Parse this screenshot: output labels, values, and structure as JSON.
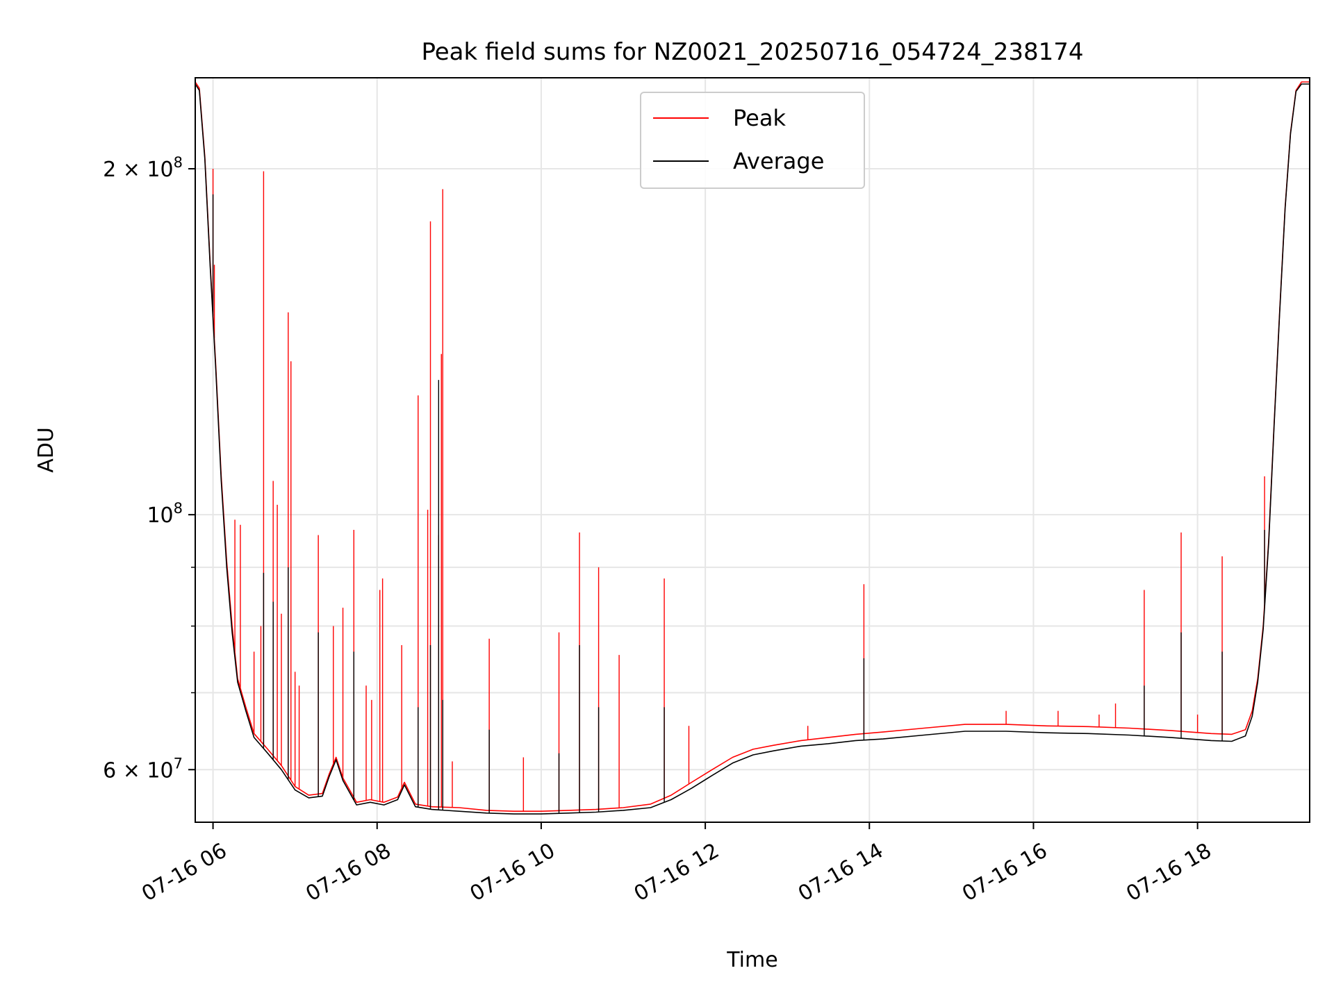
{
  "chart_data": {
    "type": "line",
    "title": "Peak field sums for NZ0021_20250716_054724_238174",
    "xlabel": "Time",
    "ylabel": "ADU",
    "x_scale": "time",
    "y_scale": "log",
    "xlim": [
      "2025-07-16 05:47",
      "2025-07-16 19:22"
    ],
    "ylim": [
      54000000,
      240000000
    ],
    "x_ticks": [
      {
        "value": "2025-07-16 06:00",
        "label": "07-16 06"
      },
      {
        "value": "2025-07-16 08:00",
        "label": "07-16 08"
      },
      {
        "value": "2025-07-16 10:00",
        "label": "07-16 10"
      },
      {
        "value": "2025-07-16 12:00",
        "label": "07-16 12"
      },
      {
        "value": "2025-07-16 14:00",
        "label": "07-16 14"
      },
      {
        "value": "2025-07-16 16:00",
        "label": "07-16 16"
      },
      {
        "value": "2025-07-16 18:00",
        "label": "07-16 18"
      }
    ],
    "y_ticks": [
      {
        "value": 60000000,
        "base": "6 × 10",
        "exp": "7"
      },
      {
        "value": 100000000,
        "base": "10",
        "exp": "8"
      },
      {
        "value": 200000000,
        "base": "2 × 10",
        "exp": "8"
      }
    ],
    "y_minor_ticks": [
      70000000,
      80000000,
      90000000
    ],
    "grid": true,
    "legend_position": "upper center",
    "series": [
      {
        "name": "Peak",
        "color": "#ff0000",
        "baseline": [
          [
            "2025-07-16 05:47",
            238000000
          ],
          [
            "2025-07-16 05:50",
            235000000
          ],
          [
            "2025-07-16 05:54",
            205000000
          ],
          [
            "2025-07-16 05:58",
            165000000
          ],
          [
            "2025-07-16 06:02",
            135000000
          ],
          [
            "2025-07-16 06:06",
            108000000
          ],
          [
            "2025-07-16 06:10",
            91000000
          ],
          [
            "2025-07-16 06:14",
            80000000
          ],
          [
            "2025-07-16 06:18",
            72000000
          ],
          [
            "2025-07-16 06:24",
            68000000
          ],
          [
            "2025-07-16 06:30",
            64500000
          ],
          [
            "2025-07-16 06:40",
            62500000
          ],
          [
            "2025-07-16 06:50",
            60500000
          ],
          [
            "2025-07-16 07:00",
            58000000
          ],
          [
            "2025-07-16 07:10",
            57000000
          ],
          [
            "2025-07-16 07:20",
            57200000
          ],
          [
            "2025-07-16 07:25",
            59500000
          ],
          [
            "2025-07-16 07:30",
            61500000
          ],
          [
            "2025-07-16 07:35",
            59000000
          ],
          [
            "2025-07-16 07:45",
            56200000
          ],
          [
            "2025-07-16 07:55",
            56500000
          ],
          [
            "2025-07-16 08:05",
            56200000
          ],
          [
            "2025-07-16 08:15",
            56800000
          ],
          [
            "2025-07-16 08:20",
            58500000
          ],
          [
            "2025-07-16 08:28",
            56000000
          ],
          [
            "2025-07-16 08:40",
            55700000
          ],
          [
            "2025-07-16 09:00",
            55600000
          ],
          [
            "2025-07-16 09:20",
            55300000
          ],
          [
            "2025-07-16 09:40",
            55200000
          ],
          [
            "2025-07-16 10:00",
            55200000
          ],
          [
            "2025-07-16 10:20",
            55300000
          ],
          [
            "2025-07-16 10:40",
            55400000
          ],
          [
            "2025-07-16 11:00",
            55600000
          ],
          [
            "2025-07-16 11:20",
            56000000
          ],
          [
            "2025-07-16 11:35",
            57000000
          ],
          [
            "2025-07-16 11:50",
            58500000
          ],
          [
            "2025-07-16 12:05",
            60000000
          ],
          [
            "2025-07-16 12:20",
            61500000
          ],
          [
            "2025-07-16 12:35",
            62500000
          ],
          [
            "2025-07-16 12:50",
            63000000
          ],
          [
            "2025-07-16 13:10",
            63600000
          ],
          [
            "2025-07-16 13:30",
            64000000
          ],
          [
            "2025-07-16 13:50",
            64400000
          ],
          [
            "2025-07-16 14:10",
            64700000
          ],
          [
            "2025-07-16 14:40",
            65200000
          ],
          [
            "2025-07-16 15:10",
            65700000
          ],
          [
            "2025-07-16 15:40",
            65700000
          ],
          [
            "2025-07-16 16:10",
            65500000
          ],
          [
            "2025-07-16 16:40",
            65400000
          ],
          [
            "2025-07-16 17:10",
            65200000
          ],
          [
            "2025-07-16 17:40",
            64900000
          ],
          [
            "2025-07-16 18:10",
            64500000
          ],
          [
            "2025-07-16 18:25",
            64400000
          ],
          [
            "2025-07-16 18:35",
            65000000
          ],
          [
            "2025-07-16 18:40",
            67500000
          ],
          [
            "2025-07-16 18:44",
            72000000
          ],
          [
            "2025-07-16 18:48",
            80000000
          ],
          [
            "2025-07-16 18:52",
            95000000
          ],
          [
            "2025-07-16 18:56",
            120000000
          ],
          [
            "2025-07-16 19:00",
            150000000
          ],
          [
            "2025-07-16 19:04",
            185000000
          ],
          [
            "2025-07-16 19:08",
            215000000
          ],
          [
            "2025-07-16 19:12",
            234000000
          ],
          [
            "2025-07-16 19:16",
            238000000
          ],
          [
            "2025-07-16 19:22",
            238000000
          ]
        ],
        "spikes": [
          [
            "2025-07-16 06:00",
            200000000
          ],
          [
            "2025-07-16 06:01",
            165000000
          ],
          [
            "2025-07-16 06:16",
            99000000
          ],
          [
            "2025-07-16 06:20",
            98000000
          ],
          [
            "2025-07-16 06:30",
            76000000
          ],
          [
            "2025-07-16 06:35",
            80000000
          ],
          [
            "2025-07-16 06:37",
            199000000
          ],
          [
            "2025-07-16 06:44",
            107000000
          ],
          [
            "2025-07-16 06:47",
            102000000
          ],
          [
            "2025-07-16 06:50",
            82000000
          ],
          [
            "2025-07-16 06:55",
            150000000
          ],
          [
            "2025-07-16 06:57",
            136000000
          ],
          [
            "2025-07-16 07:00",
            73000000
          ],
          [
            "2025-07-16 07:03",
            71000000
          ],
          [
            "2025-07-16 07:17",
            96000000
          ],
          [
            "2025-07-16 07:28",
            80000000
          ],
          [
            "2025-07-16 07:35",
            83000000
          ],
          [
            "2025-07-16 07:43",
            97000000
          ],
          [
            "2025-07-16 07:52",
            71000000
          ],
          [
            "2025-07-16 07:56",
            69000000
          ],
          [
            "2025-07-16 08:02",
            86000000
          ],
          [
            "2025-07-16 08:04",
            88000000
          ],
          [
            "2025-07-16 08:18",
            77000000
          ],
          [
            "2025-07-16 08:30",
            127000000
          ],
          [
            "2025-07-16 08:37",
            101000000
          ],
          [
            "2025-07-16 08:39",
            180000000
          ],
          [
            "2025-07-16 08:45",
            96000000
          ],
          [
            "2025-07-16 08:47",
            138000000
          ],
          [
            "2025-07-16 08:48",
            192000000
          ],
          [
            "2025-07-16 08:55",
            61000000
          ],
          [
            "2025-07-16 09:22",
            78000000
          ],
          [
            "2025-07-16 09:47",
            61500000
          ],
          [
            "2025-07-16 10:13",
            79000000
          ],
          [
            "2025-07-16 10:28",
            96500000
          ],
          [
            "2025-07-16 10:42",
            90000000
          ],
          [
            "2025-07-16 10:57",
            75500000
          ],
          [
            "2025-07-16 11:30",
            88000000
          ],
          [
            "2025-07-16 11:48",
            65500000
          ],
          [
            "2025-07-16 13:15",
            65500000
          ],
          [
            "2025-07-16 13:56",
            87000000
          ],
          [
            "2025-07-16 15:40",
            67500000
          ],
          [
            "2025-07-16 16:18",
            67500000
          ],
          [
            "2025-07-16 16:48",
            67000000
          ],
          [
            "2025-07-16 17:00",
            68500000
          ],
          [
            "2025-07-16 17:21",
            86000000
          ],
          [
            "2025-07-16 17:48",
            96500000
          ],
          [
            "2025-07-16 18:00",
            67000000
          ],
          [
            "2025-07-16 18:18",
            92000000
          ],
          [
            "2025-07-16 18:49",
            108000000
          ]
        ]
      },
      {
        "name": "Average",
        "color": "#000000",
        "baseline": [
          [
            "2025-07-16 05:47",
            237000000
          ],
          [
            "2025-07-16 05:50",
            234000000
          ],
          [
            "2025-07-16 05:54",
            204000000
          ],
          [
            "2025-07-16 05:58",
            164000000
          ],
          [
            "2025-07-16 06:02",
            134000000
          ],
          [
            "2025-07-16 06:06",
            107000000
          ],
          [
            "2025-07-16 06:10",
            90000000
          ],
          [
            "2025-07-16 06:14",
            79000000
          ],
          [
            "2025-07-16 06:18",
            71500000
          ],
          [
            "2025-07-16 06:24",
            67500000
          ],
          [
            "2025-07-16 06:30",
            64000000
          ],
          [
            "2025-07-16 06:40",
            62000000
          ],
          [
            "2025-07-16 06:50",
            60000000
          ],
          [
            "2025-07-16 07:00",
            57600000
          ],
          [
            "2025-07-16 07:10",
            56700000
          ],
          [
            "2025-07-16 07:20",
            56900000
          ],
          [
            "2025-07-16 07:25",
            59200000
          ],
          [
            "2025-07-16 07:30",
            61200000
          ],
          [
            "2025-07-16 07:35",
            58700000
          ],
          [
            "2025-07-16 07:45",
            55900000
          ],
          [
            "2025-07-16 07:55",
            56200000
          ],
          [
            "2025-07-16 08:05",
            55900000
          ],
          [
            "2025-07-16 08:15",
            56500000
          ],
          [
            "2025-07-16 08:20",
            58200000
          ],
          [
            "2025-07-16 08:28",
            55700000
          ],
          [
            "2025-07-16 08:40",
            55400000
          ],
          [
            "2025-07-16 09:00",
            55200000
          ],
          [
            "2025-07-16 09:20",
            55000000
          ],
          [
            "2025-07-16 09:40",
            54900000
          ],
          [
            "2025-07-16 10:00",
            54900000
          ],
          [
            "2025-07-16 10:20",
            55000000
          ],
          [
            "2025-07-16 10:40",
            55100000
          ],
          [
            "2025-07-16 11:00",
            55300000
          ],
          [
            "2025-07-16 11:20",
            55600000
          ],
          [
            "2025-07-16 11:35",
            56500000
          ],
          [
            "2025-07-16 11:50",
            57800000
          ],
          [
            "2025-07-16 12:05",
            59300000
          ],
          [
            "2025-07-16 12:20",
            60800000
          ],
          [
            "2025-07-16 12:35",
            61800000
          ],
          [
            "2025-07-16 12:50",
            62300000
          ],
          [
            "2025-07-16 13:10",
            62900000
          ],
          [
            "2025-07-16 13:30",
            63200000
          ],
          [
            "2025-07-16 13:50",
            63600000
          ],
          [
            "2025-07-16 14:10",
            63800000
          ],
          [
            "2025-07-16 14:40",
            64300000
          ],
          [
            "2025-07-16 15:10",
            64800000
          ],
          [
            "2025-07-16 15:40",
            64800000
          ],
          [
            "2025-07-16 16:10",
            64600000
          ],
          [
            "2025-07-16 16:40",
            64500000
          ],
          [
            "2025-07-16 17:10",
            64300000
          ],
          [
            "2025-07-16 17:40",
            64000000
          ],
          [
            "2025-07-16 18:10",
            63600000
          ],
          [
            "2025-07-16 18:25",
            63500000
          ],
          [
            "2025-07-16 18:35",
            64200000
          ],
          [
            "2025-07-16 18:40",
            66800000
          ],
          [
            "2025-07-16 18:44",
            71500000
          ],
          [
            "2025-07-16 18:48",
            79500000
          ],
          [
            "2025-07-16 18:52",
            94500000
          ],
          [
            "2025-07-16 18:56",
            119500000
          ],
          [
            "2025-07-16 19:00",
            149500000
          ],
          [
            "2025-07-16 19:04",
            184500000
          ],
          [
            "2025-07-16 19:08",
            214500000
          ],
          [
            "2025-07-16 19:12",
            233500000
          ],
          [
            "2025-07-16 19:16",
            237000000
          ],
          [
            "2025-07-16 19:22",
            237000000
          ]
        ],
        "spikes": [
          [
            "2025-07-16 06:00",
            190000000
          ],
          [
            "2025-07-16 06:37",
            89000000
          ],
          [
            "2025-07-16 06:44",
            84000000
          ],
          [
            "2025-07-16 06:55",
            90000000
          ],
          [
            "2025-07-16 07:17",
            79000000
          ],
          [
            "2025-07-16 07:43",
            76000000
          ],
          [
            "2025-07-16 08:30",
            68000000
          ],
          [
            "2025-07-16 08:39",
            77000000
          ],
          [
            "2025-07-16 08:45",
            131000000
          ],
          [
            "2025-07-16 08:48",
            69000000
          ],
          [
            "2025-07-16 09:22",
            65000000
          ],
          [
            "2025-07-16 10:13",
            62000000
          ],
          [
            "2025-07-16 10:28",
            77000000
          ],
          [
            "2025-07-16 10:42",
            68000000
          ],
          [
            "2025-07-16 11:30",
            68000000
          ],
          [
            "2025-07-16 13:56",
            75000000
          ],
          [
            "2025-07-16 17:21",
            71000000
          ],
          [
            "2025-07-16 17:48",
            79000000
          ],
          [
            "2025-07-16 18:18",
            76000000
          ],
          [
            "2025-07-16 18:49",
            97000000
          ]
        ]
      }
    ]
  }
}
